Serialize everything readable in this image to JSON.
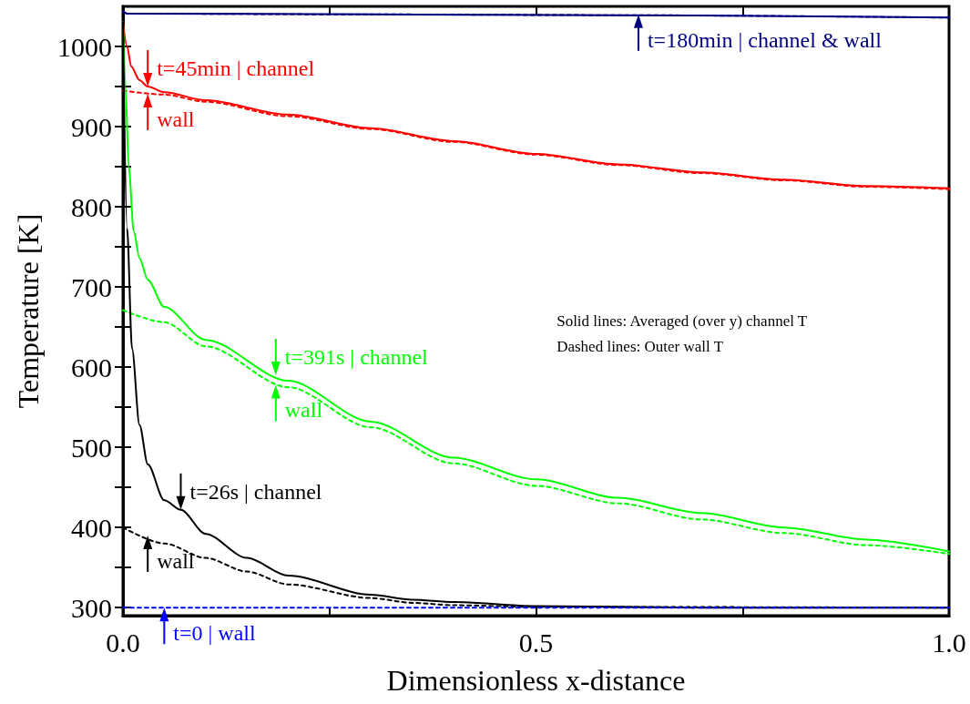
{
  "chart_data": {
    "type": "line",
    "xlabel": "Dimensionless x-distance",
    "ylabel": "Temperature [K]",
    "xlim": [
      0,
      1
    ],
    "ylim": [
      290,
      1050
    ],
    "xticks": [
      {
        "value": 0,
        "label": "0.0"
      },
      {
        "value": 0.25,
        "label": null
      },
      {
        "value": 0.5,
        "label": "0.5"
      },
      {
        "value": 0.75,
        "label": null
      },
      {
        "value": 1,
        "label": "1.0"
      }
    ],
    "yticks": [
      300,
      {
        "value": 350,
        "label": null
      },
      400,
      {
        "value": 450,
        "label": null
      },
      500,
      {
        "value": 550,
        "label": null
      },
      600,
      {
        "value": 650,
        "label": null
      },
      700,
      {
        "value": 750,
        "label": null
      },
      800,
      {
        "value": 850,
        "label": null
      },
      900,
      {
        "value": 950,
        "label": null
      },
      1000
    ],
    "grid": false,
    "marker": "none",
    "series": [
      {
        "color": "#000080",
        "line_style": "solid",
        "x": [
          0,
          0.005,
          0.3,
          0.6,
          1
        ],
        "values": [
          1044,
          1041,
          1040,
          1039,
          1036
        ]
      },
      {
        "color": "#000080",
        "line_style": "dashed",
        "x": [
          0,
          0.005,
          0.3,
          0.6,
          1
        ],
        "values": [
          1043,
          1041,
          1040,
          1039,
          1036
        ]
      },
      {
        "color": "#ff0000",
        "line_style": "solid",
        "x": [
          0,
          0.005,
          0.01,
          0.02,
          0.03,
          0.05,
          0.1,
          0.2,
          0.3,
          0.4,
          0.5,
          0.6,
          0.7,
          0.8,
          0.9,
          1
        ],
        "values": [
          1030,
          1000,
          975,
          958,
          950,
          943,
          933,
          915,
          898,
          882,
          866,
          853,
          843,
          834,
          826,
          823
        ]
      },
      {
        "color": "#ff0000",
        "line_style": "dashed",
        "x": [
          0,
          0.05,
          0.1,
          0.2,
          0.3,
          0.4,
          0.5,
          0.6,
          0.7,
          0.8,
          0.9,
          1
        ],
        "values": [
          945,
          940,
          931,
          913,
          897,
          881,
          865,
          852,
          842,
          833,
          825,
          822
        ]
      },
      {
        "color": "#00ff00",
        "line_style": "solid",
        "x": [
          0,
          0.003,
          0.007,
          0.013,
          0.02,
          0.03,
          0.05,
          0.1,
          0.2,
          0.3,
          0.4,
          0.5,
          0.6,
          0.7,
          0.8,
          0.9,
          1
        ],
        "values": [
          1030,
          950,
          850,
          770,
          736,
          709,
          675,
          634,
          583,
          532,
          487,
          460,
          437,
          418,
          400,
          385,
          370
        ]
      },
      {
        "color": "#00ff00",
        "line_style": "dashed",
        "x": [
          0,
          0.05,
          0.1,
          0.2,
          0.3,
          0.4,
          0.5,
          0.6,
          0.7,
          0.8,
          0.9,
          1
        ],
        "values": [
          671,
          656,
          626,
          575,
          525,
          480,
          452,
          430,
          410,
          393,
          378,
          367
        ]
      },
      {
        "color": "#000000",
        "line_style": "solid",
        "x": [
          0,
          0.005,
          0.011,
          0.02,
          0.03,
          0.05,
          0.07,
          0.1,
          0.15,
          0.2,
          0.3,
          0.35,
          0.4,
          0.5,
          0.7,
          1
        ],
        "values": [
          1030,
          773,
          623,
          528,
          479,
          434,
          422,
          392,
          362,
          340,
          316,
          310,
          307,
          302,
          300,
          300
        ]
      },
      {
        "color": "#000000",
        "line_style": "dashed",
        "x": [
          0,
          0.05,
          0.1,
          0.15,
          0.2,
          0.3,
          0.35,
          0.4,
          0.5,
          1
        ],
        "values": [
          400,
          380,
          362,
          345,
          329,
          312,
          306,
          303,
          301,
          300
        ]
      },
      {
        "color": "#0000ff",
        "line_style": "dashed",
        "x": [
          0,
          1
        ],
        "values": [
          300,
          300
        ]
      }
    ],
    "annotations": [
      {
        "text": "t=45min | channel",
        "x": 0.03,
        "y": 950
      },
      {
        "text": "wall",
        "x": 0.03,
        "y": 941
      },
      {
        "text": "t=391s | channel",
        "x": 0.185,
        "y": 590
      },
      {
        "text": "wall",
        "x": 0.185,
        "y": 578
      },
      {
        "text": "t=26s | channel",
        "x": 0.07,
        "y": 422
      },
      {
        "text": "wall",
        "x": 0.03,
        "y": 390
      },
      {
        "text": "t=0 | wall",
        "x": 0.05,
        "y": 300
      },
      {
        "text": "t=180min | channel & wall",
        "x": 0.624,
        "y": 1040
      },
      "Solid lines: Averaged (over y) channel T",
      "Dashed lines: Outer wall T"
    ]
  }
}
